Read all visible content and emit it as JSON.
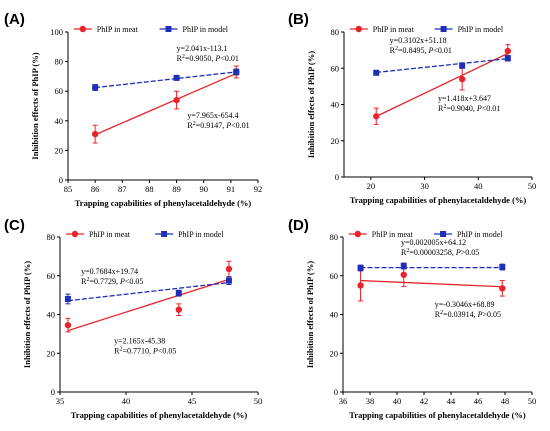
{
  "colors": {
    "meat": "#e8242a",
    "model": "#1f2fb8"
  },
  "chart_data": [
    {
      "type": "scatter",
      "panel_label": "(A)",
      "xlabel": "Trapping capabilities of phenylacetaldehyde (%)",
      "ylabel": "Inhibition effects of PhIP (%)",
      "xlim": [
        85,
        92
      ],
      "ylim": [
        0,
        100
      ],
      "xticks": [
        85,
        86,
        87,
        88,
        89,
        90,
        91,
        92
      ],
      "yticks": [
        0,
        20,
        40,
        60,
        80,
        100
      ],
      "legend": [
        "PhIP in meat",
        "PhIP in model"
      ],
      "series": [
        {
          "name": "PhIP in meat",
          "style": "meat",
          "x": [
            86,
            89,
            91.2
          ],
          "y": [
            31,
            54,
            73
          ],
          "err": [
            6,
            6,
            4
          ],
          "fit": [
            -654.4,
            7.965
          ]
        },
        {
          "name": "PhIP in model",
          "style": "model",
          "x": [
            86,
            89,
            91.2
          ],
          "y": [
            62.5,
            69,
            73
          ],
          "err": [
            2,
            1.5,
            2
          ],
          "fit": [
            -113.1,
            2.041
          ]
        }
      ],
      "annotations": [
        {
          "series": "model",
          "dx": 89,
          "dy": 87,
          "eq": "y=2.041x-113.1",
          "r2": "=0.9050, ",
          "p": "<0.01"
        },
        {
          "series": "meat",
          "dx": 89.4,
          "dy": 42,
          "eq": "y=7.965x-654.4",
          "r2": "=0.9147, ",
          "p": "<0.01"
        }
      ]
    },
    {
      "type": "scatter",
      "panel_label": "(B)",
      "xlabel": "Trapping capabilities of phenylacetaldehyde (%)",
      "ylabel": "Inhibition effects of PhIP (%)",
      "xlim": [
        15,
        50
      ],
      "ylim": [
        0,
        80
      ],
      "xticks": [
        20,
        30,
        40,
        50
      ],
      "yticks": [
        0,
        20,
        40,
        60,
        80
      ],
      "legend": [
        "PhIP in meat",
        "PhIP in model"
      ],
      "series": [
        {
          "name": "PhIP in meat",
          "style": "meat",
          "x": [
            21,
            37,
            45.5
          ],
          "y": [
            33.5,
            54,
            69.5
          ],
          "err": [
            4.5,
            6,
            3.5
          ],
          "fit": [
            3.647,
            1.418
          ]
        },
        {
          "name": "PhIP in model",
          "style": "model",
          "x": [
            21,
            37,
            45.5
          ],
          "y": [
            57.5,
            61.5,
            65.5
          ],
          "err": [
            1,
            1.5,
            1.5
          ],
          "fit": [
            51.18,
            0.3102
          ]
        }
      ],
      "annotations": [
        {
          "series": "model",
          "dx": 23.5,
          "dy": 74,
          "eq": "y=0.3102x+51.18",
          "r2": "=0.8495, ",
          "p": "<0.01"
        },
        {
          "series": "meat",
          "dx": 32.5,
          "dy": 42,
          "eq": "y=1.418x+3.647",
          "r2": "=0.9040, ",
          "p": "<0.01"
        }
      ]
    },
    {
      "type": "scatter",
      "panel_label": "(C)",
      "xlabel": "Trapping capabilities of phenylacetaldehyde (%)",
      "ylabel": "Inhibition effects of PhIP (%)",
      "xlim": [
        35,
        50
      ],
      "ylim": [
        0,
        80
      ],
      "xticks": [
        35,
        40,
        45,
        50
      ],
      "yticks": [
        0,
        20,
        40,
        60,
        80
      ],
      "legend": [
        "PhIP in meat",
        "PhIP in model"
      ],
      "series": [
        {
          "name": "PhIP in meat",
          "style": "meat",
          "x": [
            35.6,
            44,
            47.8
          ],
          "y": [
            34.5,
            42.5,
            63.5
          ],
          "err": [
            3.5,
            3,
            4
          ],
          "fit": [
            -45.38,
            2.165
          ]
        },
        {
          "name": "PhIP in model",
          "style": "model",
          "x": [
            35.6,
            44,
            47.8
          ],
          "y": [
            48,
            51,
            57.5
          ],
          "err": [
            2.5,
            1.5,
            2
          ],
          "fit": [
            19.74,
            0.7684
          ]
        }
      ],
      "annotations": [
        {
          "series": "model",
          "dx": 36.6,
          "dy": 61,
          "eq": "y=0.7684x+19.74",
          "r2": "=0.7729, ",
          "p": "<0.05"
        },
        {
          "series": "meat",
          "dx": 39.1,
          "dy": 25,
          "eq": "y=2.165x-45.38",
          "r2": "=0.7710, ",
          "p": "<0.05"
        }
      ]
    },
    {
      "type": "scatter",
      "panel_label": "(D)",
      "xlabel": "Trapping capabilities of phenylacetaldehyde (%)",
      "ylabel": "Inhibition effects of PhIP (%)",
      "xlim": [
        36,
        50
      ],
      "ylim": [
        0,
        80
      ],
      "xticks": [
        36,
        38,
        40,
        42,
        44,
        46,
        48,
        50
      ],
      "yticks": [
        0,
        20,
        40,
        60,
        80
      ],
      "legend": [
        "PhIP in meat",
        "PhIP in model"
      ],
      "series": [
        {
          "name": "PhIP in meat",
          "style": "meat",
          "x": [
            37.3,
            40.5,
            47.8
          ],
          "y": [
            55,
            60.5,
            53.5
          ],
          "err": [
            8,
            6,
            4
          ],
          "fit": [
            68.89,
            -0.3046
          ]
        },
        {
          "name": "PhIP in model",
          "style": "model",
          "x": [
            37.3,
            40.5,
            47.8
          ],
          "y": [
            64,
            65,
            64.5
          ],
          "err": [
            1.5,
            1.5,
            1.5
          ],
          "fit": [
            64.12,
            0.002005
          ]
        }
      ],
      "annotations": [
        {
          "series": "model",
          "dx": 40.3,
          "dy": 76,
          "eq": "y=0.002005x+64.12",
          "r2": "=0.00003258, ",
          "p": ">0.05"
        },
        {
          "series": "meat",
          "dx": 42.8,
          "dy": 44,
          "eq": "y=-0.3046x+68.89",
          "r2": "=0.03914, ",
          "p": ">0.05"
        }
      ]
    }
  ]
}
